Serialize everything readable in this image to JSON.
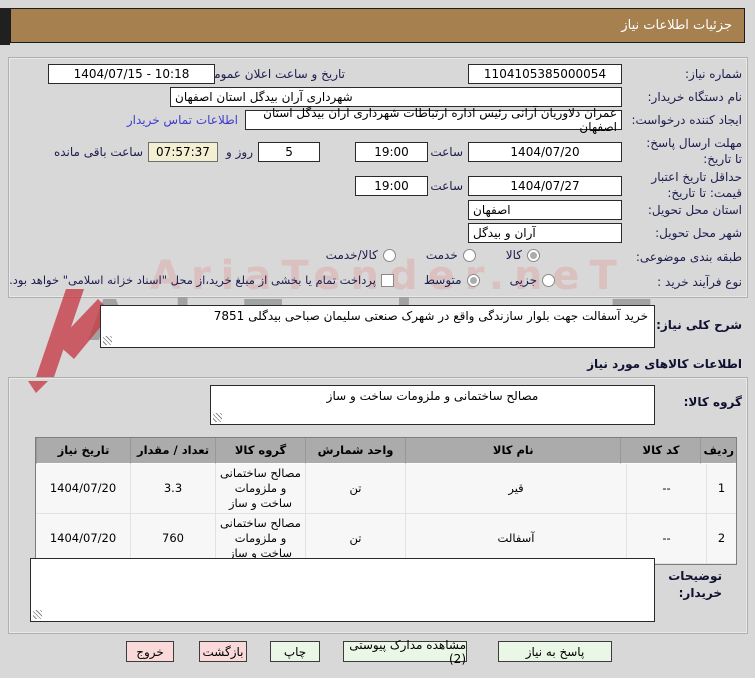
{
  "title_bar": {
    "text": "جزئیات اطلاعات نیاز"
  },
  "watermark": {
    "text": "AriaTender.neT"
  },
  "colors": {
    "title_bar_bg": "#a6804e",
    "countdown_bg": "#f3efd3",
    "link_blue": "#3e3ecd",
    "button_green": "#eaf7e7",
    "button_pink": "#f9d9d9",
    "table_header_bg": "#ababab",
    "watermark_red": "#c63a44"
  },
  "form": {
    "need_number": {
      "label": "شماره نیاز:",
      "value": "1104105385000054"
    },
    "announce_datetime": {
      "label": "تاریخ و ساعت اعلان عمومی:",
      "value": "1404/07/15 - 10:18"
    },
    "buyer_org": {
      "label": "نام دستگاه خریدار:",
      "value": "شهرداری آران بیدگل استان اصفهان"
    },
    "request_creator": {
      "label": "ایجاد کننده درخواست:",
      "value": "عمران دلاوریان آرانی رئیس اداره ارتباطات شهرداری آران بیدگل استان اصفهان"
    },
    "buyer_contact_link": "اطلاعات تماس خریدار",
    "reply_deadline": {
      "label": "مهلت ارسال پاسخ: تا تاریخ:",
      "date": "1404/07/20",
      "hour_label": "ساعت",
      "time": "19:00"
    },
    "remaining": {
      "days": "5",
      "days_label": "روز و",
      "countdown": "07:57:37",
      "suffix": "ساعت باقی مانده"
    },
    "price_validity": {
      "label": "حداقل تاریخ اعتبار قیمت: تا تاریخ:",
      "date": "1404/07/27",
      "hour_label": "ساعت",
      "time": "19:00"
    },
    "province": {
      "label": "استان محل تحویل:",
      "value": "اصفهان"
    },
    "city": {
      "label": "شهر محل تحویل:",
      "value": "آران و بیدگل"
    },
    "classification": {
      "label": "طبقه بندی موضوعی:",
      "options": [
        {
          "label": "کالا",
          "selected": true
        },
        {
          "label": "خدمت",
          "selected": false
        },
        {
          "label": "کالا/خدمت",
          "selected": false
        }
      ]
    },
    "process_type": {
      "label": "نوع فرآیند خرید :",
      "options": [
        {
          "label": "جزیی",
          "selected": false
        },
        {
          "label": "متوسط",
          "selected": true
        }
      ],
      "checkbox_label": "پرداخت تمام یا بخشی از مبلغ خرید،از محل \"اسناد خزانه اسلامی\" خواهد بود.",
      "checkbox_checked": false
    }
  },
  "need_description": {
    "label": "شرح کلی نیاز:",
    "value": "خرید آسفالت جهت بلوار سازندگی واقع در شهرک صنعتی سلیمان صباحی بیدگلی 7851"
  },
  "items_heading": "اطلاعات کالاهای مورد نیاز",
  "item_group": {
    "label": "گروه کالا:",
    "value": "مصالح ساختمانی و ملزومات ساخت و ساز"
  },
  "table": {
    "headers": [
      "ردیف",
      "کد کالا",
      "نام کالا",
      "واحد شمارش",
      "گروه کالا",
      "تعداد / مقدار",
      "تاریخ نیاز"
    ],
    "rows": [
      [
        "1",
        "--",
        "قیر",
        "تن",
        "مصالح ساختمانی و ملزومات ساخت و ساز",
        "3.3",
        "1404/07/20"
      ],
      [
        "2",
        "--",
        "آسفالت",
        "تن",
        "مصالح ساختمانی و ملزومات ساخت و ساز",
        "760",
        "1404/07/20"
      ]
    ]
  },
  "buyer_notes": {
    "label": "توضیحات خریدار:",
    "value": ""
  },
  "buttons": {
    "reply": {
      "label": "پاسخ به نیاز"
    },
    "attachments": {
      "label": "مشاهده مدارک پیوستی (2)"
    },
    "print": {
      "label": "چاپ"
    },
    "back": {
      "label": "بازگشت"
    },
    "exit": {
      "label": "خروج"
    }
  }
}
